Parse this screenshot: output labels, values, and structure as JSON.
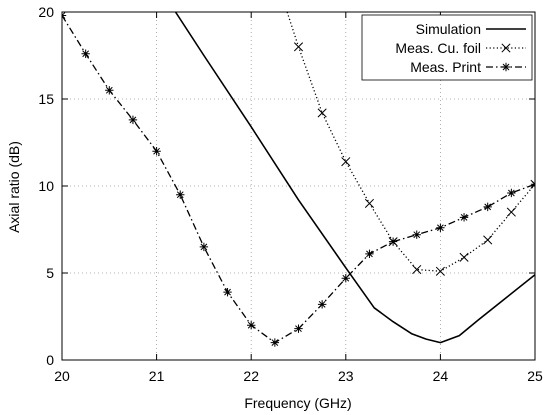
{
  "chart_data": {
    "type": "line",
    "xlabel": "Frequency (GHz)",
    "ylabel": "Axial ratio (dB)",
    "xlim": [
      20,
      25
    ],
    "ylim": [
      0,
      20
    ],
    "x_ticks": [
      "20",
      "21",
      "22",
      "23",
      "24",
      "25"
    ],
    "y_ticks": [
      "0",
      "5",
      "10",
      "15",
      "20"
    ],
    "grid": "dotted",
    "legend_position": "top-right",
    "series": [
      {
        "name": "Simulation",
        "line_style": "solid",
        "marker": "none",
        "x": [
          21.2,
          21.5,
          22.0,
          22.5,
          23.0,
          23.3,
          23.5,
          23.7,
          23.85,
          24.0,
          24.2,
          24.4,
          24.7,
          25.0
        ],
        "y": [
          20.0,
          17.5,
          13.4,
          9.2,
          5.3,
          3.0,
          2.2,
          1.5,
          1.2,
          1.0,
          1.4,
          2.3,
          3.6,
          4.9
        ]
      },
      {
        "name": "Meas. Cu. foil",
        "line_style": "dotted",
        "marker": "x",
        "x": [
          22.38,
          22.5,
          22.75,
          23.0,
          23.25,
          23.5,
          23.75,
          24.0,
          24.25,
          24.5,
          24.75,
          25.0
        ],
        "y": [
          20.0,
          18.0,
          14.2,
          11.4,
          9.0,
          6.8,
          5.2,
          5.1,
          5.9,
          6.9,
          8.5,
          10.1
        ]
      },
      {
        "name": "Meas. Print",
        "line_style": "dashdot",
        "marker": "asterisk",
        "x": [
          20.0,
          20.25,
          20.5,
          20.75,
          21.0,
          21.25,
          21.5,
          21.75,
          22.0,
          22.25,
          22.5,
          22.75,
          23.0,
          23.25,
          23.5,
          23.75,
          24.0,
          24.25,
          24.5,
          24.75,
          25.0
        ],
        "y": [
          19.8,
          17.6,
          15.5,
          13.8,
          12.0,
          9.5,
          6.5,
          3.9,
          2.0,
          1.0,
          1.8,
          3.2,
          4.7,
          6.1,
          6.8,
          7.2,
          7.6,
          8.2,
          8.8,
          9.6,
          10.1
        ]
      }
    ]
  }
}
